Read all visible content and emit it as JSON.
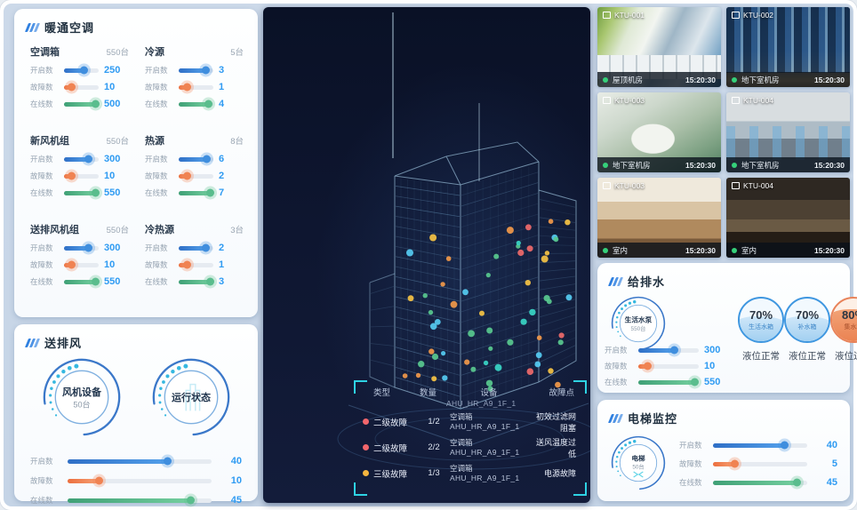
{
  "hvac": {
    "title": "暖通空调",
    "groups": [
      {
        "name": "空调箱",
        "count": "550台",
        "rows": [
          {
            "label": "开启数",
            "value": "250",
            "pct": 58
          },
          {
            "label": "故障数",
            "value": "10",
            "pct": 22
          },
          {
            "label": "在线数",
            "value": "500",
            "pct": 93
          }
        ]
      },
      {
        "name": "冷源",
        "count": "5台",
        "rows": [
          {
            "label": "开启数",
            "value": "3",
            "pct": 80
          },
          {
            "label": "故障数",
            "value": "1",
            "pct": 25
          },
          {
            "label": "在线数",
            "value": "4",
            "pct": 88
          }
        ]
      },
      {
        "name": "新风机组",
        "count": "550台",
        "rows": [
          {
            "label": "开启数",
            "value": "300",
            "pct": 72
          },
          {
            "label": "故障数",
            "value": "10",
            "pct": 22
          },
          {
            "label": "在线数",
            "value": "550",
            "pct": 93
          }
        ]
      },
      {
        "name": "热源",
        "count": "8台",
        "rows": [
          {
            "label": "开启数",
            "value": "6",
            "pct": 82
          },
          {
            "label": "故障数",
            "value": "2",
            "pct": 25
          },
          {
            "label": "在线数",
            "value": "7",
            "pct": 92
          }
        ]
      },
      {
        "name": "送排风机组",
        "count": "550台",
        "rows": [
          {
            "label": "开启数",
            "value": "300",
            "pct": 72
          },
          {
            "label": "故障数",
            "value": "10",
            "pct": 22
          },
          {
            "label": "在线数",
            "value": "550",
            "pct": 93
          }
        ]
      },
      {
        "name": "冷热源",
        "count": "3台",
        "rows": [
          {
            "label": "开启数",
            "value": "2",
            "pct": 80
          },
          {
            "label": "故障数",
            "value": "1",
            "pct": 25
          },
          {
            "label": "在线数",
            "value": "3",
            "pct": 92
          }
        ]
      }
    ]
  },
  "exhaust": {
    "title": "送排风",
    "gauges": [
      {
        "label": "风机设备",
        "count": "50台"
      },
      {
        "label": "运行状态",
        "count": ""
      }
    ],
    "rows": [
      {
        "label": "开启数",
        "value": "40",
        "pct": 70
      },
      {
        "label": "故障数",
        "value": "10",
        "pct": 22
      },
      {
        "label": "在线数",
        "value": "45",
        "pct": 86
      }
    ]
  },
  "cameras": {
    "tiles": [
      {
        "id": "KTU-001",
        "location": "屋顶机房",
        "time": "15:20:30",
        "scene": "cam-1"
      },
      {
        "id": "KTU-002",
        "location": "地下室机房",
        "time": "15:20:30",
        "scene": "cam-2"
      },
      {
        "id": "KTU-003",
        "location": "地下室机房",
        "time": "15:20:30",
        "scene": "cam-3"
      },
      {
        "id": "KTU-004",
        "location": "地下室机房",
        "time": "15:20:30",
        "scene": "cam-4"
      },
      {
        "id": "KTU-003",
        "location": "室内",
        "time": "15:20:30",
        "scene": "cam-5"
      },
      {
        "id": "KTU-004",
        "location": "室内",
        "time": "15:20:30",
        "scene": "cam-6"
      }
    ]
  },
  "water": {
    "title": "给排水",
    "gauge": {
      "label": "生活水泵",
      "count": "550台"
    },
    "tanks": [
      {
        "pct": "70%",
        "name": "生活水箱",
        "status": "液位正常",
        "type": "blue"
      },
      {
        "pct": "70%",
        "name": "补水箱",
        "status": "液位正常",
        "type": "blue"
      },
      {
        "pct": "80%",
        "name": "集水坑",
        "status": "液位过高",
        "type": "orange"
      }
    ],
    "rows": [
      {
        "label": "开启数",
        "value": "300",
        "pct": 60
      },
      {
        "label": "故障数",
        "value": "10",
        "pct": 16
      },
      {
        "label": "在线数",
        "value": "550",
        "pct": 94
      }
    ]
  },
  "elevator": {
    "title": "电梯监控",
    "gauge": {
      "label": "电梯",
      "count": "50台"
    },
    "rows": [
      {
        "label": "开启数",
        "value": "40",
        "pct": 76
      },
      {
        "label": "故障数",
        "value": "5",
        "pct": 24
      },
      {
        "label": "在线数",
        "value": "45",
        "pct": 90
      }
    ]
  },
  "center": {
    "table": {
      "headers": [
        "类型",
        "数量",
        "设备",
        "故障点"
      ],
      "partial_device": "AHU_HR_A9_1F_1",
      "rows": [
        {
          "dot": "red",
          "type": "二级故障",
          "qty": "1/2",
          "device_line1": "空调箱",
          "device_line2": "AHU_HR_A9_1F_1",
          "fault": "初效过滤网阻塞"
        },
        {
          "dot": "red",
          "type": "二级故障",
          "qty": "2/2",
          "device_line1": "空调箱",
          "device_line2": "AHU_HR_A9_1F_1",
          "fault": "送风温度过低"
        },
        {
          "dot": "yellow",
          "type": "三级故障",
          "qty": "1/3",
          "device_line1": "空调箱",
          "device_line2": "AHU_HR_A9_1F_1",
          "fault": "电源故障"
        }
      ]
    }
  },
  "colors": {
    "accent_blue": "#3f8ede",
    "accent_orange": "#f08352",
    "accent_green": "#5abd8d",
    "value_blue": "#2f9bf2",
    "cyan": "#2ed3e4",
    "panel_bg": "#fdfeff",
    "board_bg": "#c9d7e7",
    "dark_bg": "#0e1630"
  }
}
